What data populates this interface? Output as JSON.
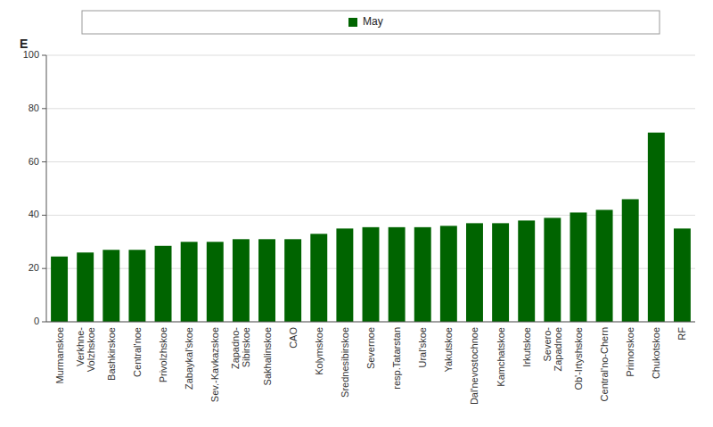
{
  "chart_data": {
    "type": "bar",
    "ylabel": "E",
    "categories": [
      "Murmanskoe",
      "Verkhnе-\nVolzhskoe",
      "Bashkirskoe",
      "Central'noe",
      "Privolzhskoe",
      "Zabaykal'skoe",
      "Sev.-Kavkazskoe",
      "Zapadno-\nSibirskoe",
      "Sakhalinskoe",
      "CAO",
      "Kolymskoe",
      "Srednesibirskoe",
      "Severnoe",
      "resp.Tatarstan",
      "Ural'skoe",
      "Yakutskoe",
      "Dal'nevostochnoe",
      "Kamchatskoe",
      "Irkutskoe",
      "Severo-\nZapadnoe",
      "Ob'-Irtyshskoe",
      "Central'no-Chern",
      "Primorskoe",
      "Chukotskoe",
      "RF"
    ],
    "series": [
      {
        "name": "May",
        "color": "#006400",
        "values": [
          24.5,
          26.0,
          27.0,
          27.0,
          28.5,
          30.0,
          30.0,
          31.0,
          31.0,
          31.0,
          33.0,
          35.0,
          35.5,
          35.5,
          35.5,
          36.0,
          37.0,
          37.0,
          38.0,
          39.0,
          41.0,
          42.0,
          46.0,
          71.0,
          35.0
        ]
      }
    ],
    "ylim": [
      0,
      100
    ],
    "yticks": [
      0,
      20,
      40,
      60,
      80,
      100
    ],
    "grid": true,
    "legend": "top"
  }
}
